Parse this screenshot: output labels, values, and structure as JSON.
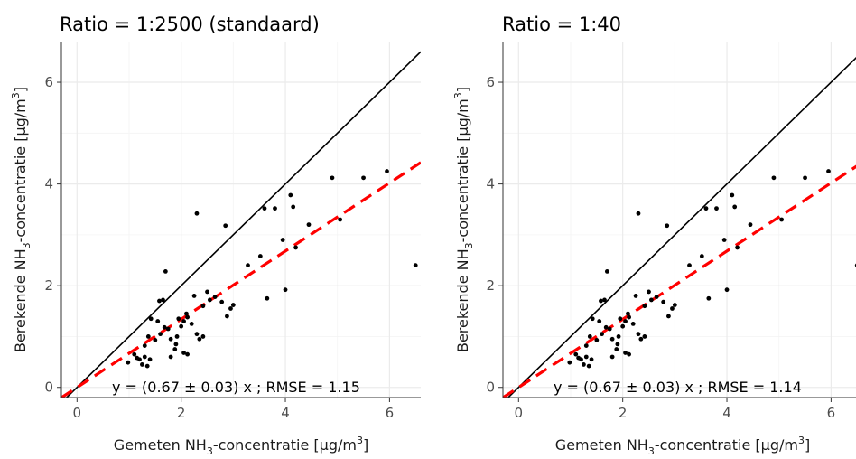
{
  "chart_data": [
    {
      "type": "scatter",
      "title": "Ratio = 1:2500 (standaard)",
      "xlabel": {
        "pre": "Gemeten NH",
        "sub": "3",
        "post": "-concentratie [µg/m",
        "sup": "3",
        "end": "]"
      },
      "ylabel": {
        "pre": "Berekende NH",
        "sub": "3",
        "post": "-concentratie [µg/m",
        "sup": "3",
        "end": "]"
      },
      "xlim": [
        -0.3,
        6.6
      ],
      "ylim": [
        -0.2,
        6.8
      ],
      "xticks": [
        0,
        2,
        4,
        6
      ],
      "yticks": [
        0,
        2,
        4,
        6
      ],
      "grid": true,
      "annotation": "y = (0.67 ± 0.03) x ; RMSE = 1.15",
      "slope": 0.67,
      "reference_line_slope": 1,
      "points": [
        [
          0.98,
          0.49
        ],
        [
          1.1,
          0.65
        ],
        [
          1.15,
          0.58
        ],
        [
          1.2,
          0.55
        ],
        [
          1.25,
          0.45
        ],
        [
          1.3,
          0.6
        ],
        [
          1.35,
          0.42
        ],
        [
          1.4,
          0.55
        ],
        [
          1.3,
          0.82
        ],
        [
          1.37,
          1.0
        ],
        [
          1.42,
          1.35
        ],
        [
          1.5,
          0.93
        ],
        [
          1.55,
          1.3
        ],
        [
          1.6,
          1.05
        ],
        [
          1.65,
          1.72
        ],
        [
          1.7,
          2.28
        ],
        [
          1.75,
          1.15
        ],
        [
          1.8,
          0.95
        ],
        [
          1.8,
          0.6
        ],
        [
          1.88,
          0.75
        ],
        [
          1.9,
          0.85
        ],
        [
          1.92,
          1.0
        ],
        [
          2.0,
          1.2
        ],
        [
          2.05,
          1.3
        ],
        [
          2.1,
          1.45
        ],
        [
          2.12,
          1.38
        ],
        [
          2.05,
          0.68
        ],
        [
          2.12,
          0.65
        ],
        [
          2.2,
          1.25
        ],
        [
          2.25,
          1.8
        ],
        [
          2.3,
          1.05
        ],
        [
          2.3,
          3.42
        ],
        [
          2.35,
          0.95
        ],
        [
          2.42,
          1.0
        ],
        [
          2.42,
          1.6
        ],
        [
          2.5,
          1.88
        ],
        [
          2.55,
          1.72
        ],
        [
          2.65,
          1.78
        ],
        [
          2.78,
          1.68
        ],
        [
          2.85,
          3.18
        ],
        [
          2.88,
          1.4
        ],
        [
          2.95,
          1.55
        ],
        [
          3.0,
          1.62
        ],
        [
          3.28,
          2.4
        ],
        [
          3.52,
          2.58
        ],
        [
          3.6,
          3.52
        ],
        [
          3.65,
          1.75
        ],
        [
          3.8,
          3.52
        ],
        [
          3.95,
          2.9
        ],
        [
          4.0,
          1.92
        ],
        [
          4.1,
          3.78
        ],
        [
          4.15,
          3.55
        ],
        [
          4.2,
          2.75
        ],
        [
          4.45,
          3.2
        ],
        [
          4.9,
          4.12
        ],
        [
          5.05,
          3.3
        ],
        [
          5.5,
          4.12
        ],
        [
          5.95,
          4.25
        ],
        [
          6.5,
          2.4
        ],
        [
          1.58,
          1.7
        ],
        [
          1.68,
          1.18
        ],
        [
          1.95,
          1.35
        ]
      ]
    },
    {
      "type": "scatter",
      "title": "Ratio = 1:40",
      "xlabel": {
        "pre": "Gemeten NH",
        "sub": "3",
        "post": "-concentratie [µg/m",
        "sup": "3",
        "end": "]"
      },
      "ylabel": {
        "pre": "Berekende NH",
        "sub": "3",
        "post": "-concentratie [µg/m",
        "sup": "3",
        "end": "]"
      },
      "xlim": [
        -0.3,
        6.6
      ],
      "ylim": [
        -0.2,
        6.8
      ],
      "xticks": [
        0,
        2,
        4,
        6
      ],
      "yticks": [
        0,
        2,
        4,
        6
      ],
      "grid": true,
      "annotation": "y = (0.67 ± 0.03) x ; RMSE = 1.14",
      "slope": 0.67,
      "reference_line_slope": 1,
      "points": [
        [
          0.98,
          0.49
        ],
        [
          1.1,
          0.65
        ],
        [
          1.15,
          0.58
        ],
        [
          1.2,
          0.55
        ],
        [
          1.25,
          0.45
        ],
        [
          1.3,
          0.6
        ],
        [
          1.35,
          0.42
        ],
        [
          1.4,
          0.55
        ],
        [
          1.3,
          0.82
        ],
        [
          1.37,
          1.0
        ],
        [
          1.42,
          1.35
        ],
        [
          1.5,
          0.93
        ],
        [
          1.55,
          1.3
        ],
        [
          1.6,
          1.05
        ],
        [
          1.65,
          1.72
        ],
        [
          1.7,
          2.28
        ],
        [
          1.75,
          1.15
        ],
        [
          1.8,
          0.95
        ],
        [
          1.8,
          0.6
        ],
        [
          1.88,
          0.75
        ],
        [
          1.9,
          0.85
        ],
        [
          1.92,
          1.0
        ],
        [
          2.0,
          1.2
        ],
        [
          2.05,
          1.3
        ],
        [
          2.1,
          1.45
        ],
        [
          2.12,
          1.38
        ],
        [
          2.05,
          0.68
        ],
        [
          2.12,
          0.65
        ],
        [
          2.2,
          1.25
        ],
        [
          2.25,
          1.8
        ],
        [
          2.3,
          1.05
        ],
        [
          2.3,
          3.42
        ],
        [
          2.35,
          0.95
        ],
        [
          2.42,
          1.0
        ],
        [
          2.42,
          1.6
        ],
        [
          2.5,
          1.88
        ],
        [
          2.55,
          1.72
        ],
        [
          2.65,
          1.78
        ],
        [
          2.78,
          1.68
        ],
        [
          2.85,
          3.18
        ],
        [
          2.88,
          1.4
        ],
        [
          2.95,
          1.55
        ],
        [
          3.0,
          1.62
        ],
        [
          3.28,
          2.4
        ],
        [
          3.52,
          2.58
        ],
        [
          3.6,
          3.52
        ],
        [
          3.65,
          1.75
        ],
        [
          3.8,
          3.52
        ],
        [
          3.95,
          2.9
        ],
        [
          4.0,
          1.92
        ],
        [
          4.1,
          3.78
        ],
        [
          4.15,
          3.55
        ],
        [
          4.2,
          2.75
        ],
        [
          4.45,
          3.2
        ],
        [
          4.9,
          4.12
        ],
        [
          5.05,
          3.3
        ],
        [
          5.5,
          4.12
        ],
        [
          5.95,
          4.25
        ],
        [
          6.5,
          2.4
        ],
        [
          1.58,
          1.7
        ],
        [
          1.68,
          1.18
        ],
        [
          1.95,
          1.35
        ]
      ]
    }
  ],
  "colors": {
    "points": "#000000",
    "fit_line": "#ff0000",
    "reference_line": "#000000"
  }
}
